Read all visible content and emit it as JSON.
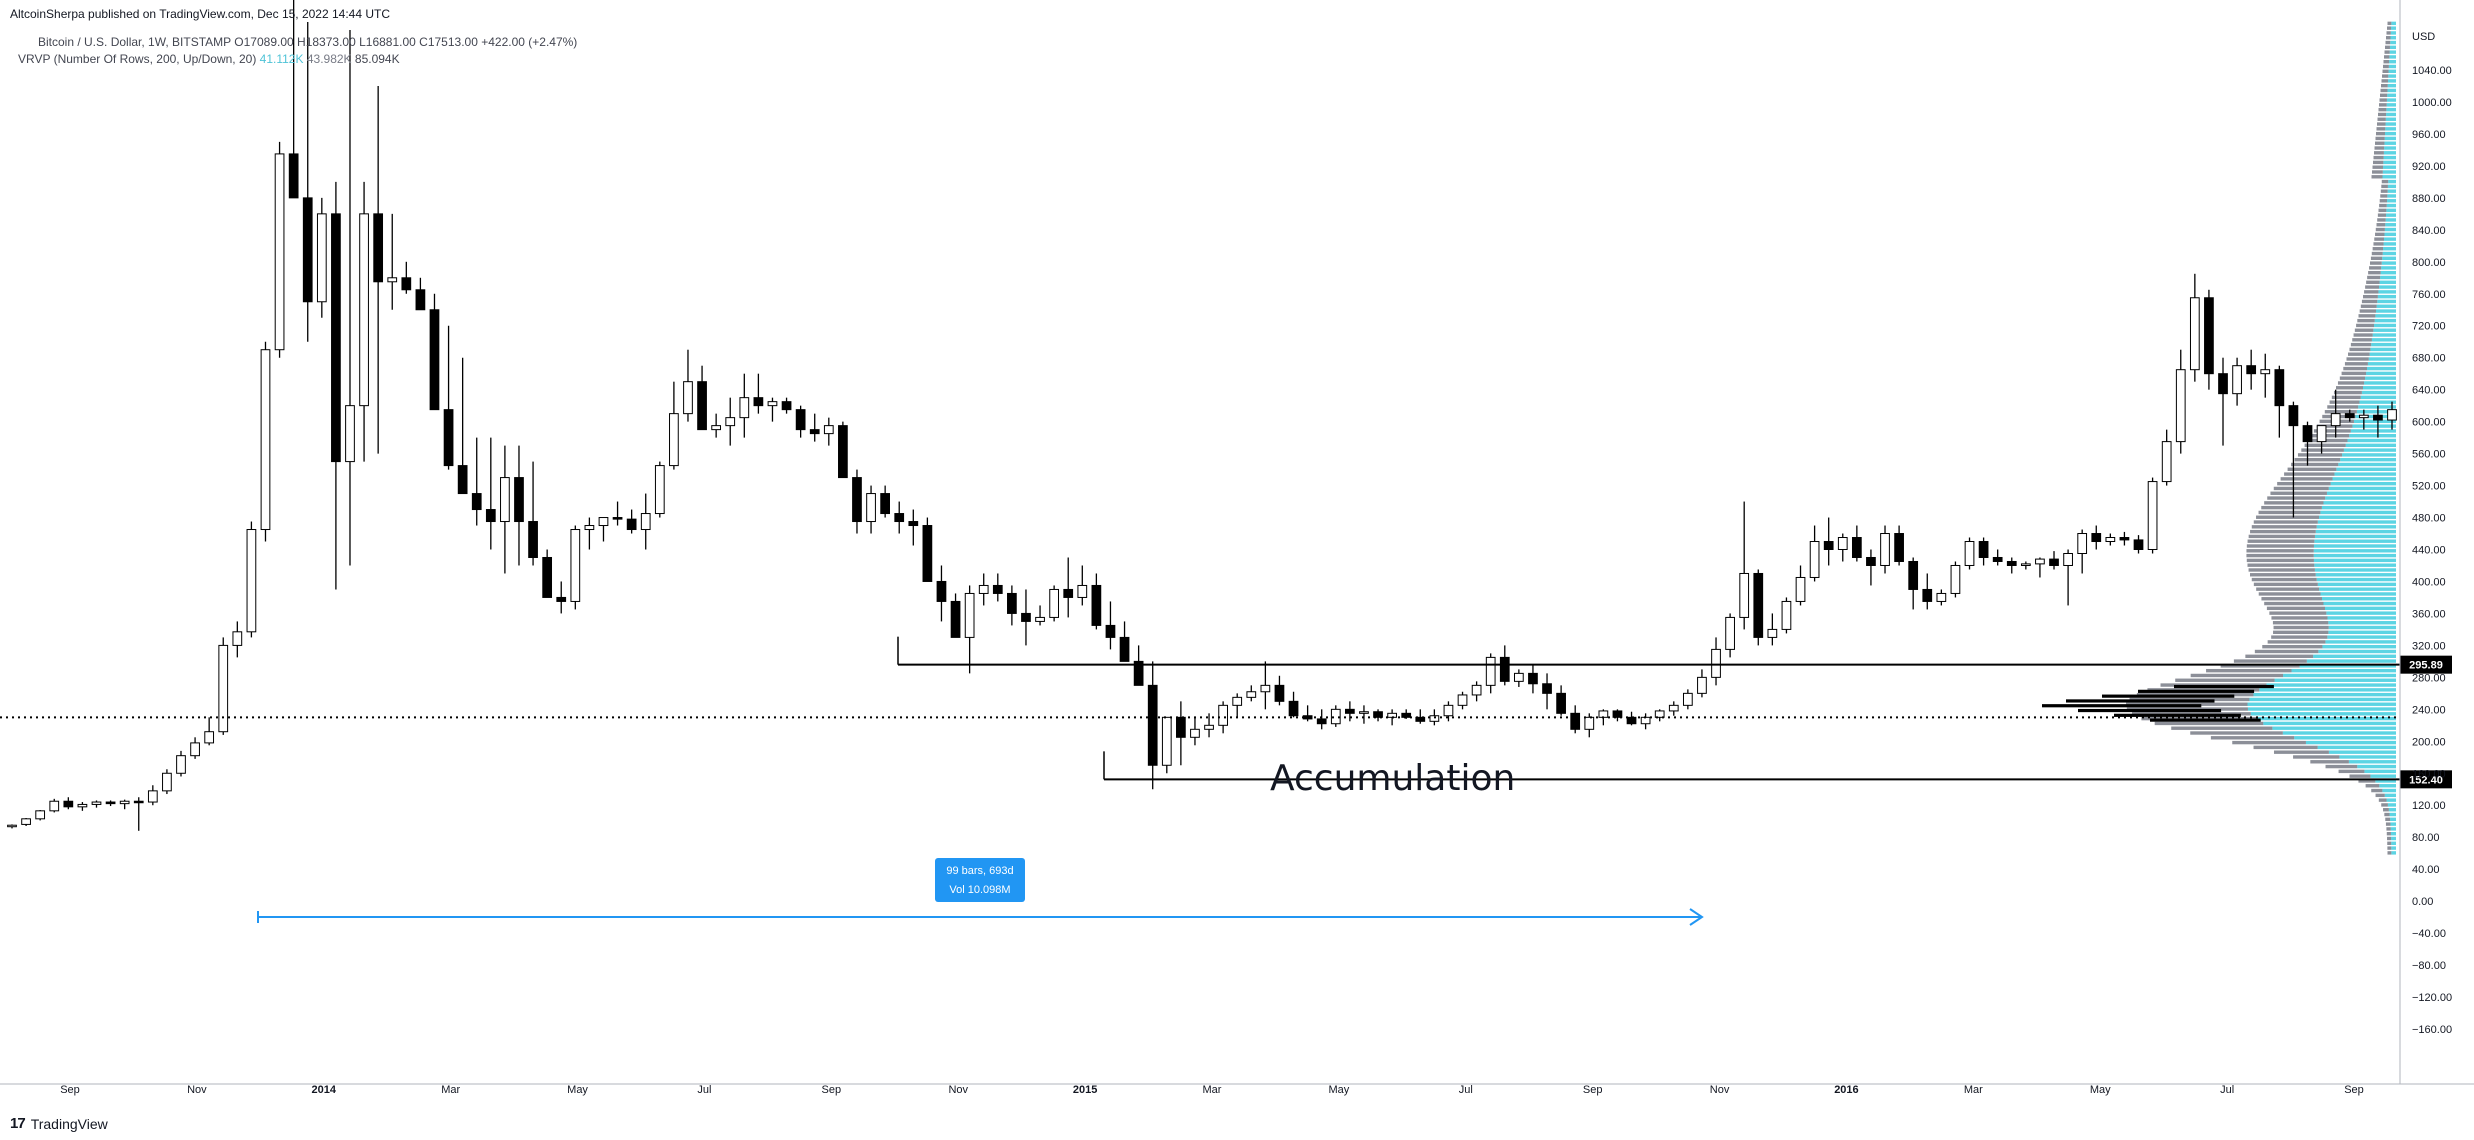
{
  "header": {
    "publisher_line": "AltcoinSherpa published on TradingView.com, Dec 15, 2022 14:44 UTC"
  },
  "legend": {
    "symbol": "Bitcoin / U.S. Dollar, 1W, BITSTAMP",
    "open": "O17089.00",
    "high": "H18373.00",
    "low": "L16881.00",
    "close": "C17513.00",
    "change": "+422.00 (+2.47%)",
    "indicator": "VRVP (Number Of Rows, 200, Up/Down, 20)",
    "ind_v1": "41.112K",
    "ind_v2": "43.982K",
    "ind_v3": "85.094K"
  },
  "footer": {
    "brand": "TradingView",
    "logo": "17"
  },
  "chart_data": {
    "type": "candlestick",
    "timeframe": "1W",
    "y_axis": {
      "unit": "USD",
      "ticks": [
        1040,
        1000,
        960,
        920,
        880,
        840,
        800,
        760,
        720,
        680,
        640,
        600,
        560,
        520,
        480,
        440,
        400,
        360,
        320,
        280,
        240,
        200,
        160,
        120,
        80,
        40,
        0,
        -40,
        -80,
        -120,
        -160
      ],
      "tick_labels": [
        "1040.00",
        "1000.00",
        "960.00",
        "920.00",
        "880.00",
        "840.00",
        "800.00",
        "760.00",
        "720.00",
        "680.00",
        "640.00",
        "600.00",
        "560.00",
        "520.00",
        "480.00",
        "440.00",
        "400.00",
        "360.00",
        "320.00",
        "280.00",
        "240.00",
        "200.00",
        "160.00",
        "120.00",
        "80.00",
        "40.00",
        "0.00",
        "−40.00",
        "−80.00",
        "−120.00",
        "−160.00"
      ],
      "range": [
        -180,
        1080
      ]
    },
    "x_axis": {
      "labels": [
        "Sep",
        "Nov",
        "2014",
        "Mar",
        "May",
        "Jul",
        "Sep",
        "Nov",
        "2015",
        "Mar",
        "May",
        "Jul",
        "Sep",
        "Nov",
        "2016",
        "Mar",
        "May",
        "Jul",
        "Sep"
      ],
      "bold_labels": [
        "2014",
        "2015",
        "2016"
      ]
    },
    "candles_ohlc": [
      [
        94,
        96,
        91,
        95
      ],
      [
        96,
        104,
        94,
        103
      ],
      [
        103,
        114,
        101,
        113
      ],
      [
        113,
        128,
        111,
        125
      ],
      [
        125,
        130,
        115,
        118
      ],
      [
        118,
        124,
        113,
        121
      ],
      [
        121,
        126,
        117,
        124
      ],
      [
        124,
        126,
        119,
        122
      ],
      [
        122,
        127,
        115,
        125
      ],
      [
        125,
        130,
        88,
        124
      ],
      [
        124,
        145,
        120,
        138
      ],
      [
        138,
        165,
        134,
        160
      ],
      [
        160,
        188,
        156,
        182
      ],
      [
        182,
        205,
        178,
        198
      ],
      [
        198,
        230,
        195,
        212
      ],
      [
        212,
        330,
        208,
        320
      ],
      [
        320,
        350,
        305,
        337
      ],
      [
        337,
        475,
        330,
        465
      ],
      [
        465,
        700,
        450,
        690
      ],
      [
        690,
        950,
        680,
        935
      ],
      [
        935,
        1165,
        920,
        880
      ],
      [
        880,
        1100,
        700,
        750
      ],
      [
        750,
        880,
        730,
        860
      ],
      [
        860,
        900,
        390,
        550
      ],
      [
        550,
        1090,
        420,
        620
      ],
      [
        620,
        900,
        550,
        860
      ],
      [
        860,
        1020,
        560,
        775
      ],
      [
        775,
        860,
        740,
        780
      ],
      [
        780,
        800,
        760,
        765
      ],
      [
        765,
        780,
        740,
        740
      ],
      [
        740,
        760,
        615,
        615
      ],
      [
        615,
        720,
        540,
        545
      ],
      [
        545,
        680,
        510,
        510
      ],
      [
        510,
        580,
        470,
        490
      ],
      [
        490,
        580,
        440,
        475
      ],
      [
        475,
        570,
        410,
        530
      ],
      [
        530,
        570,
        420,
        475
      ],
      [
        475,
        550,
        420,
        430
      ],
      [
        430,
        440,
        380,
        380
      ],
      [
        380,
        400,
        360,
        375
      ],
      [
        375,
        470,
        365,
        465
      ],
      [
        465,
        480,
        440,
        470
      ],
      [
        470,
        480,
        450,
        480
      ],
      [
        480,
        500,
        470,
        478
      ],
      [
        478,
        490,
        460,
        465
      ],
      [
        465,
        510,
        440,
        485
      ],
      [
        485,
        550,
        480,
        545
      ],
      [
        545,
        650,
        540,
        610
      ],
      [
        610,
        690,
        600,
        650
      ],
      [
        650,
        670,
        590,
        590
      ],
      [
        590,
        610,
        580,
        595
      ],
      [
        595,
        630,
        570,
        605
      ],
      [
        605,
        660,
        580,
        630
      ],
      [
        630,
        660,
        610,
        620
      ],
      [
        620,
        630,
        600,
        625
      ],
      [
        625,
        630,
        610,
        615
      ],
      [
        615,
        620,
        580,
        590
      ],
      [
        590,
        610,
        575,
        585
      ],
      [
        585,
        605,
        570,
        595
      ],
      [
        595,
        600,
        540,
        530
      ],
      [
        530,
        540,
        460,
        475
      ],
      [
        475,
        520,
        460,
        510
      ],
      [
        510,
        520,
        480,
        485
      ],
      [
        485,
        500,
        460,
        475
      ],
      [
        475,
        490,
        445,
        470
      ],
      [
        470,
        480,
        400,
        400
      ],
      [
        400,
        420,
        350,
        375
      ],
      [
        375,
        385,
        330,
        330
      ],
      [
        330,
        395,
        285,
        385
      ],
      [
        385,
        410,
        370,
        395
      ],
      [
        395,
        410,
        375,
        385
      ],
      [
        385,
        395,
        345,
        360
      ],
      [
        360,
        390,
        320,
        350
      ],
      [
        350,
        370,
        345,
        355
      ],
      [
        355,
        395,
        350,
        390
      ],
      [
        390,
        430,
        355,
        380
      ],
      [
        380,
        420,
        370,
        395
      ],
      [
        395,
        410,
        340,
        345
      ],
      [
        345,
        375,
        315,
        330
      ],
      [
        330,
        350,
        300,
        300
      ],
      [
        300,
        320,
        295,
        270
      ],
      [
        270,
        300,
        140,
        170
      ],
      [
        170,
        230,
        160,
        230
      ],
      [
        230,
        250,
        170,
        205
      ],
      [
        205,
        230,
        195,
        215
      ],
      [
        215,
        235,
        205,
        220
      ],
      [
        220,
        250,
        210,
        245
      ],
      [
        245,
        260,
        230,
        255
      ],
      [
        255,
        270,
        250,
        262
      ],
      [
        262,
        300,
        240,
        270
      ],
      [
        270,
        282,
        245,
        250
      ],
      [
        250,
        262,
        230,
        232
      ],
      [
        232,
        245,
        225,
        228
      ],
      [
        228,
        240,
        215,
        222
      ],
      [
        222,
        245,
        218,
        240
      ],
      [
        240,
        250,
        225,
        235
      ],
      [
        235,
        245,
        222,
        237
      ],
      [
        237,
        240,
        225,
        230
      ],
      [
        230,
        240,
        220,
        235
      ],
      [
        235,
        240,
        228,
        230
      ],
      [
        230,
        240,
        222,
        225
      ],
      [
        225,
        240,
        220,
        232
      ],
      [
        232,
        250,
        225,
        245
      ],
      [
        245,
        262,
        240,
        258
      ],
      [
        258,
        275,
        250,
        270
      ],
      [
        270,
        310,
        260,
        305
      ],
      [
        305,
        320,
        270,
        275
      ],
      [
        275,
        290,
        268,
        285
      ],
      [
        285,
        295,
        260,
        272
      ],
      [
        272,
        285,
        240,
        260
      ],
      [
        260,
        270,
        232,
        235
      ],
      [
        235,
        245,
        210,
        215
      ],
      [
        215,
        235,
        205,
        230
      ],
      [
        230,
        240,
        220,
        238
      ],
      [
        238,
        240,
        225,
        230
      ],
      [
        230,
        237,
        220,
        222
      ],
      [
        222,
        235,
        215,
        230
      ],
      [
        230,
        240,
        225,
        238
      ],
      [
        238,
        250,
        232,
        245
      ],
      [
        245,
        265,
        240,
        260
      ],
      [
        260,
        290,
        255,
        280
      ],
      [
        280,
        330,
        270,
        315
      ],
      [
        315,
        360,
        305,
        355
      ],
      [
        355,
        500,
        340,
        410
      ],
      [
        410,
        415,
        320,
        330
      ],
      [
        330,
        360,
        320,
        340
      ],
      [
        340,
        380,
        335,
        375
      ],
      [
        375,
        420,
        370,
        405
      ],
      [
        405,
        470,
        400,
        450
      ],
      [
        450,
        480,
        420,
        440
      ],
      [
        440,
        460,
        425,
        455
      ],
      [
        455,
        470,
        425,
        430
      ],
      [
        430,
        440,
        395,
        420
      ],
      [
        420,
        470,
        410,
        460
      ],
      [
        460,
        470,
        420,
        425
      ],
      [
        425,
        430,
        365,
        390
      ],
      [
        390,
        410,
        365,
        375
      ],
      [
        375,
        390,
        370,
        385
      ],
      [
        385,
        425,
        380,
        420
      ],
      [
        420,
        455,
        415,
        450
      ],
      [
        450,
        455,
        420,
        430
      ],
      [
        430,
        440,
        420,
        425
      ],
      [
        425,
        430,
        410,
        420
      ],
      [
        420,
        425,
        415,
        422
      ],
      [
        422,
        430,
        405,
        428
      ],
      [
        428,
        438,
        415,
        420
      ],
      [
        420,
        440,
        370,
        435
      ],
      [
        435,
        465,
        410,
        460
      ],
      [
        460,
        470,
        440,
        450
      ],
      [
        450,
        460,
        445,
        455
      ],
      [
        455,
        462,
        445,
        452
      ],
      [
        452,
        458,
        435,
        440
      ],
      [
        440,
        530,
        435,
        525
      ],
      [
        525,
        590,
        520,
        575
      ],
      [
        575,
        690,
        560,
        665
      ],
      [
        665,
        785,
        650,
        755
      ],
      [
        755,
        765,
        640,
        660
      ],
      [
        660,
        680,
        570,
        635
      ],
      [
        635,
        680,
        620,
        670
      ],
      [
        670,
        690,
        640,
        660
      ],
      [
        660,
        685,
        630,
        665
      ],
      [
        665,
        670,
        580,
        620
      ],
      [
        620,
        625,
        480,
        595
      ],
      [
        595,
        600,
        545,
        575
      ],
      [
        575,
        595,
        560,
        595
      ],
      [
        595,
        640,
        580,
        610
      ],
      [
        610,
        615,
        600,
        605
      ],
      [
        605,
        615,
        590,
        608
      ],
      [
        608,
        620,
        580,
        602
      ],
      [
        602,
        625,
        590,
        615
      ]
    ],
    "horizontal_levels": [
      {
        "value": 295.89,
        "label": "295.89",
        "style": "solid"
      },
      {
        "value": 152.4,
        "label": "152.40",
        "style": "solid"
      },
      {
        "value": 230,
        "style": "dotted"
      }
    ],
    "annotations": [
      {
        "text": "Accumulation"
      },
      {
        "type": "date-range",
        "line1": "99 bars, 693d",
        "line2": "Vol 10.098M"
      }
    ],
    "volume_profile": {
      "name": "VRVP",
      "colors": {
        "up": "#26c6da",
        "down": "#787b86"
      }
    },
    "colors": {
      "up_body": "#ffffff",
      "down_body": "#000000",
      "wick": "#000000",
      "measure": "#2196f3",
      "profile_up": "#26c6da",
      "profile_down": "#787b86"
    }
  }
}
